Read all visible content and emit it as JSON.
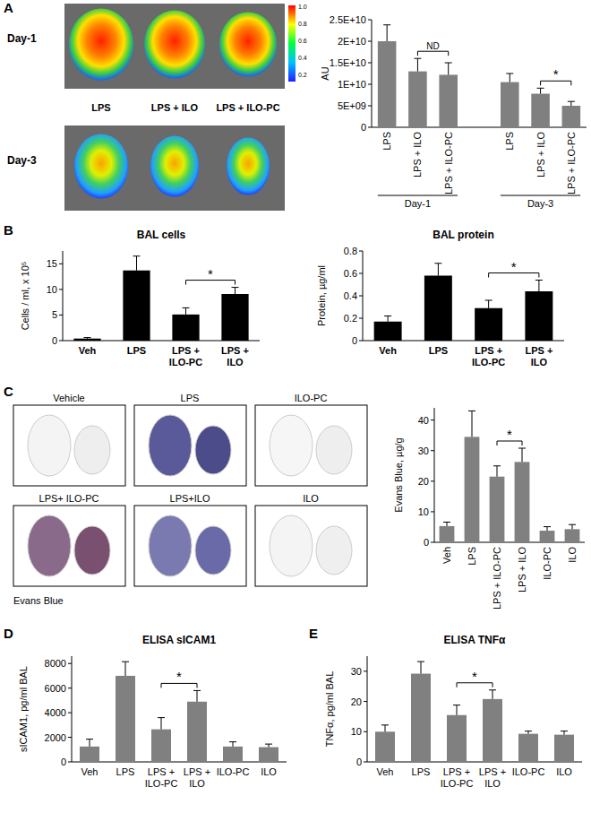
{
  "chart_data": [
    {
      "type": "bar",
      "color": "#808080",
      "y_label": "AU",
      "categories": [
        "LPS",
        "LPS + ILO",
        "LPS + ILO-PC",
        null,
        "LPS",
        "LPS + ILO",
        "LPS + ILO-PC"
      ],
      "values": [
        20000000000,
        13000000000,
        12200000000,
        null,
        10500000000,
        7800000000,
        5000000000
      ],
      "errors": [
        3800000000,
        3000000000,
        2800000000,
        null,
        2000000000,
        1300000000,
        1000000000
      ],
      "group_labels": [
        "Day-1",
        "Day-3"
      ],
      "ylim": [
        0,
        25000000000
      ],
      "yticks": [
        0,
        {
          "value": 5000000000,
          "label": "5E+09"
        },
        {
          "value": 10000000000,
          "label": "1E+10"
        },
        {
          "value": 15000000000,
          "label": "1.5E+10"
        },
        {
          "value": 20000000000,
          "label": "2E+10"
        },
        {
          "value": 25000000000,
          "label": "2.5E+10"
        }
      ],
      "annotations": [
        {
          "text": "ND",
          "between": [
            1,
            2
          ]
        },
        {
          "text": "*",
          "between": [
            5,
            6
          ]
        }
      ]
    },
    {
      "type": "bar",
      "color": "#000000",
      "title": "BAL cells",
      "y_label": "Cells / ml, x 10⁵",
      "categories": [
        "Veh",
        "LPS",
        "LPS + ILO-PC",
        "LPS + ILO"
      ],
      "values": [
        0.4,
        13.7,
        5.1,
        9.1
      ],
      "errors": [
        0.2,
        2.8,
        1.3,
        1.3
      ],
      "ylim": [
        0,
        17.5
      ],
      "yticks": [
        0,
        5,
        10,
        15
      ],
      "annotations": [
        {
          "text": "*",
          "between": [
            2,
            3
          ]
        }
      ]
    },
    {
      "type": "bar",
      "color": "#000000",
      "title": "BAL protein",
      "y_label": "Protein, µg/ml",
      "categories": [
        "Veh",
        "LPS",
        "LPS + ILO-PC",
        "LPS + ILO"
      ],
      "values": [
        0.17,
        0.58,
        0.29,
        0.44
      ],
      "errors": [
        0.05,
        0.11,
        0.07,
        0.1
      ],
      "ylim": [
        0,
        0.8
      ],
      "yticks": [
        0,
        0.2,
        0.4,
        0.6,
        0.8
      ],
      "annotations": [
        {
          "text": "*",
          "between": [
            2,
            3
          ]
        }
      ]
    },
    {
      "type": "bar",
      "color": "#808080",
      "y_label": "Evans Blue, µg/g",
      "categories": [
        "Veh",
        "LPS",
        "LPS + ILO-PC",
        "LPS + ILO",
        "ILO-PC",
        "ILO"
      ],
      "values": [
        5.3,
        34.5,
        21.5,
        26.3,
        3.8,
        4.3
      ],
      "errors": [
        1.3,
        8.5,
        3.5,
        4.5,
        1.3,
        1.5
      ],
      "ylim": [
        0,
        44
      ],
      "yticks": [
        0,
        10,
        20,
        30,
        40
      ],
      "annotations": [
        {
          "text": "*",
          "between": [
            2,
            3
          ]
        }
      ]
    },
    {
      "type": "bar",
      "color": "#808080",
      "title": "ELISA sICAM1",
      "y_label": "sICAM1, pg/ml BAL",
      "categories": [
        "Veh",
        "LPS",
        "LPS + ILO-PC",
        "LPS + ILO",
        "ILO-PC",
        "ILO"
      ],
      "values": [
        1250,
        7000,
        2650,
        4900,
        1250,
        1200
      ],
      "errors": [
        600,
        1150,
        950,
        900,
        380,
        250
      ],
      "ylim": [
        0,
        8600
      ],
      "yticks": [
        0,
        2000,
        4000,
        6000,
        8000
      ],
      "annotations": [
        {
          "text": "*",
          "between": [
            2,
            3
          ]
        }
      ]
    },
    {
      "type": "bar",
      "color": "#808080",
      "title": "ELISA TNFα",
      "y_label": "TNFα, pg/ml BAL",
      "categories": [
        "Veh",
        "LPS",
        "LPS + ILO-PC",
        "LPS + ILO",
        "ILO-PC",
        "ILO"
      ],
      "values": [
        10,
        29.2,
        15.5,
        20.8,
        9.3,
        9
      ],
      "errors": [
        2.2,
        4,
        3.3,
        3,
        0.9,
        1.2
      ],
      "ylim": [
        0,
        35
      ],
      "yticks": [
        0,
        10,
        20,
        30
      ],
      "annotations": [
        {
          "text": "*",
          "between": [
            2,
            3
          ]
        }
      ]
    }
  ],
  "figure": {
    "panel_labels": [
      "A",
      "B",
      "C",
      "D",
      "E"
    ],
    "imaging_rows": [
      "Day-1",
      "Day-3"
    ],
    "imaging_labels": [
      "LPS",
      "LPS + ILO",
      "LPS + ILO-PC"
    ],
    "colorbar_labels": [
      "1.0",
      "0.8",
      "0.6",
      "0.4",
      "0.2"
    ],
    "lung_labels": [
      "Vehicle",
      "LPS",
      "ILO-PC",
      "LPS+ ILO-PC",
      "LPS+ILO",
      "ILO"
    ],
    "lung_caption": "Evans Blue"
  }
}
